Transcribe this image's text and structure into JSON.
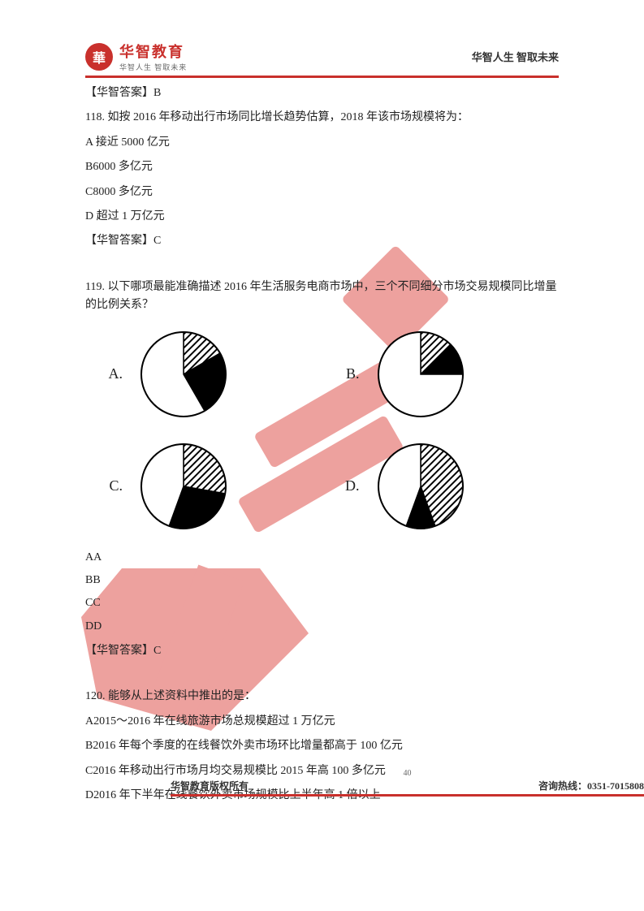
{
  "header": {
    "logo_char": "華",
    "logo_main": "华智教育",
    "logo_sub": "华智人生 智取未来",
    "right_text": "华智人生 智取未来"
  },
  "q117_answer": "【华智答案】B",
  "q118": {
    "stem": "118. 如按 2016 年移动出行市场同比增长趋势估算，2018 年该市场规模将为：",
    "optA": "A 接近 5000 亿元",
    "optB": "B6000 多亿元",
    "optC": "C8000 多亿元",
    "optD": "D 超过 1 万亿元",
    "answer": "【华智答案】C"
  },
  "q119": {
    "stem": "119. 以下哪项最能准确描述 2016 年生活服务电商市场中，三个不同细分市场交易规模同比增量的比例关系？",
    "optA_label": "A.",
    "optB_label": "B.",
    "optC_label": "C.",
    "optD_label": "D.",
    "list_AA": "AA",
    "list_BB": "BB",
    "list_CC": "CC",
    "list_DD": "DD",
    "answer": "【华智答案】C",
    "pies": {
      "A": {
        "radius": 52,
        "slices": [
          {
            "start": -90,
            "end": -30,
            "fill": "hatch",
            "stroke": "#000"
          },
          {
            "start": -30,
            "end": 60,
            "fill": "#000",
            "stroke": "#000"
          },
          {
            "start": 60,
            "end": 270,
            "fill": "#fff",
            "stroke": "#000"
          }
        ]
      },
      "B": {
        "radius": 52,
        "slices": [
          {
            "start": -90,
            "end": -45,
            "fill": "hatch",
            "stroke": "#000"
          },
          {
            "start": -45,
            "end": 0,
            "fill": "#000",
            "stroke": "#000"
          },
          {
            "start": 0,
            "end": 270,
            "fill": "#fff",
            "stroke": "#000"
          }
        ]
      },
      "C": {
        "radius": 52,
        "slices": [
          {
            "start": -90,
            "end": 10,
            "fill": "hatch",
            "stroke": "#000"
          },
          {
            "start": 10,
            "end": 110,
            "fill": "#000",
            "stroke": "#000"
          },
          {
            "start": 110,
            "end": 270,
            "fill": "#fff",
            "stroke": "#000"
          }
        ]
      },
      "D": {
        "radius": 52,
        "slices": [
          {
            "start": -90,
            "end": 70,
            "fill": "hatch",
            "stroke": "#000"
          },
          {
            "start": 70,
            "end": 110,
            "fill": "#000",
            "stroke": "#000"
          },
          {
            "start": 110,
            "end": 270,
            "fill": "#fff",
            "stroke": "#000"
          }
        ]
      }
    }
  },
  "q120": {
    "stem": "120. 能够从上述资料中推出的是：",
    "optA": "A2015～2016 年在线旅游市场总规模超过 1 万亿元",
    "optB": "B2016 年每个季度的在线餐饮外卖市场环比增量都高于 100 亿元",
    "optC": "C2016 年移动出行市场月均交易规模比 2015 年高 100 多亿元",
    "optD": "D2016 年下半年在线餐饮外卖市场规模比上半年高 1 倍以上"
  },
  "footer": {
    "left": "华智教育版权所有",
    "page": "40",
    "right": "咨询热线：0351-7015808"
  },
  "colors": {
    "brand": "#c9302c",
    "text": "#222222",
    "watermark": "#e05550"
  }
}
